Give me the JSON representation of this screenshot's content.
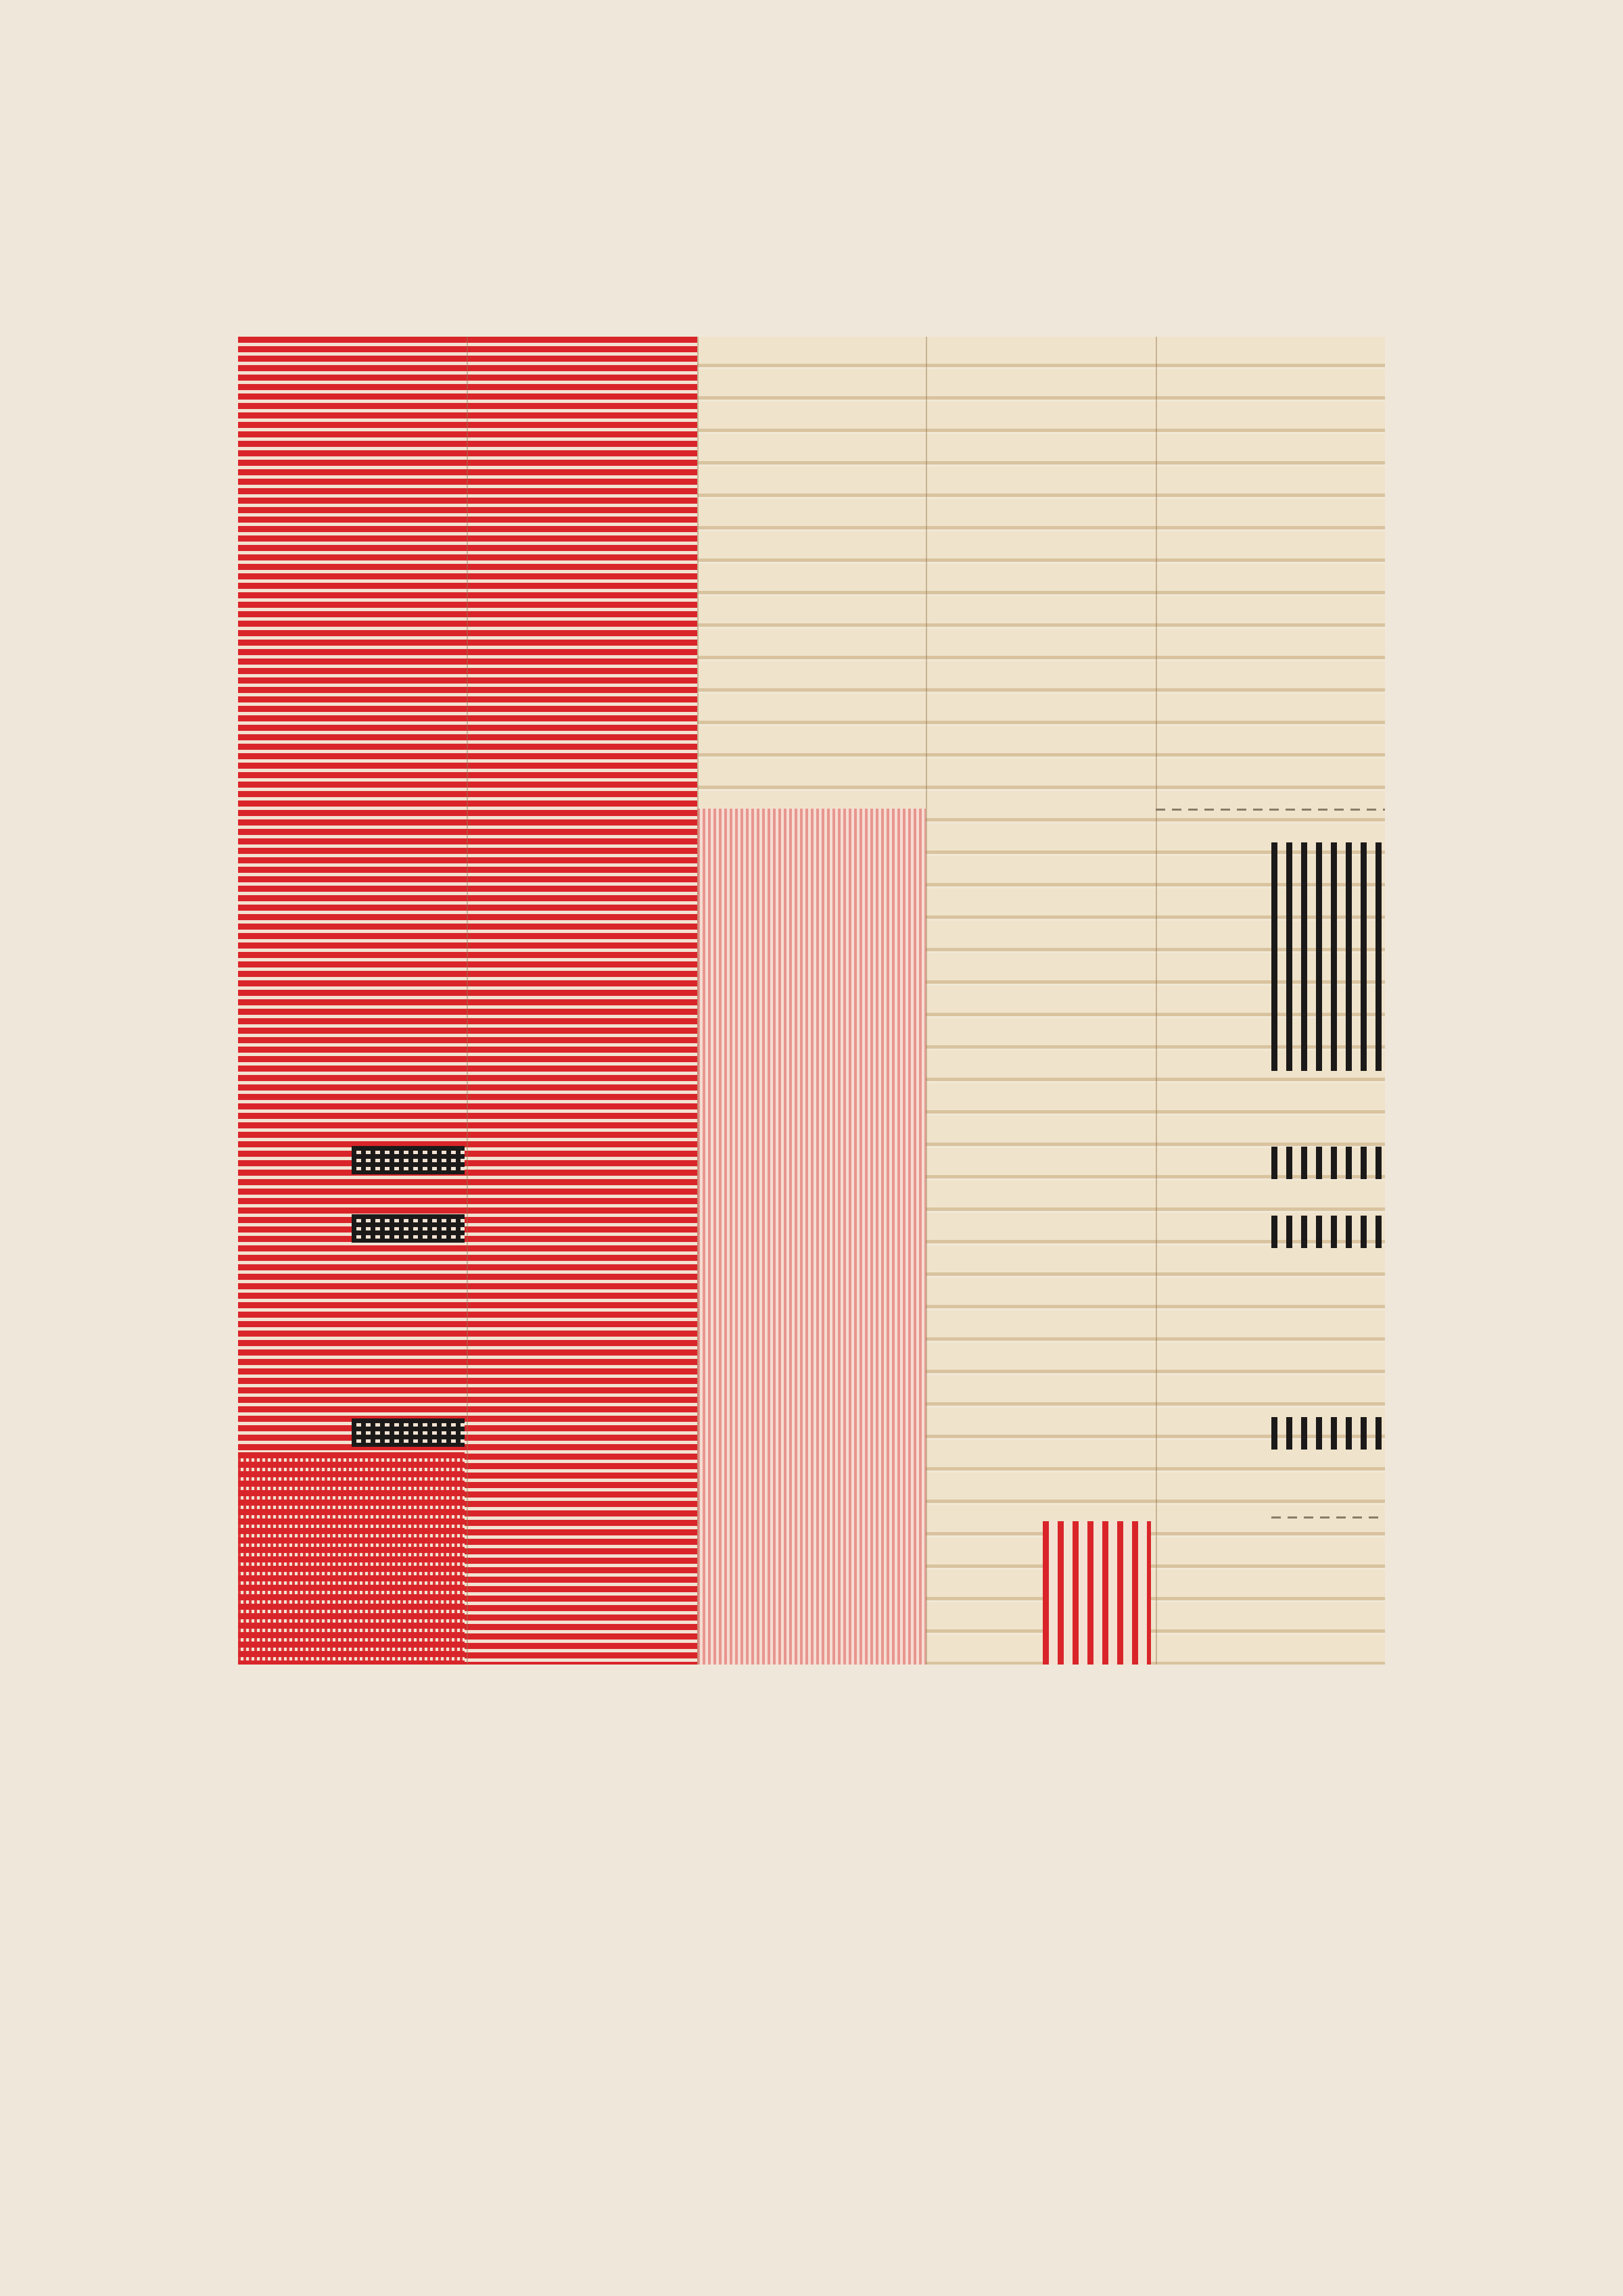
{
  "palette": {
    "background": "#efe8da",
    "red": "#d9252a",
    "cream": "#eee3cd",
    "pink": "#e8968f",
    "black": "#1c1a19"
  }
}
